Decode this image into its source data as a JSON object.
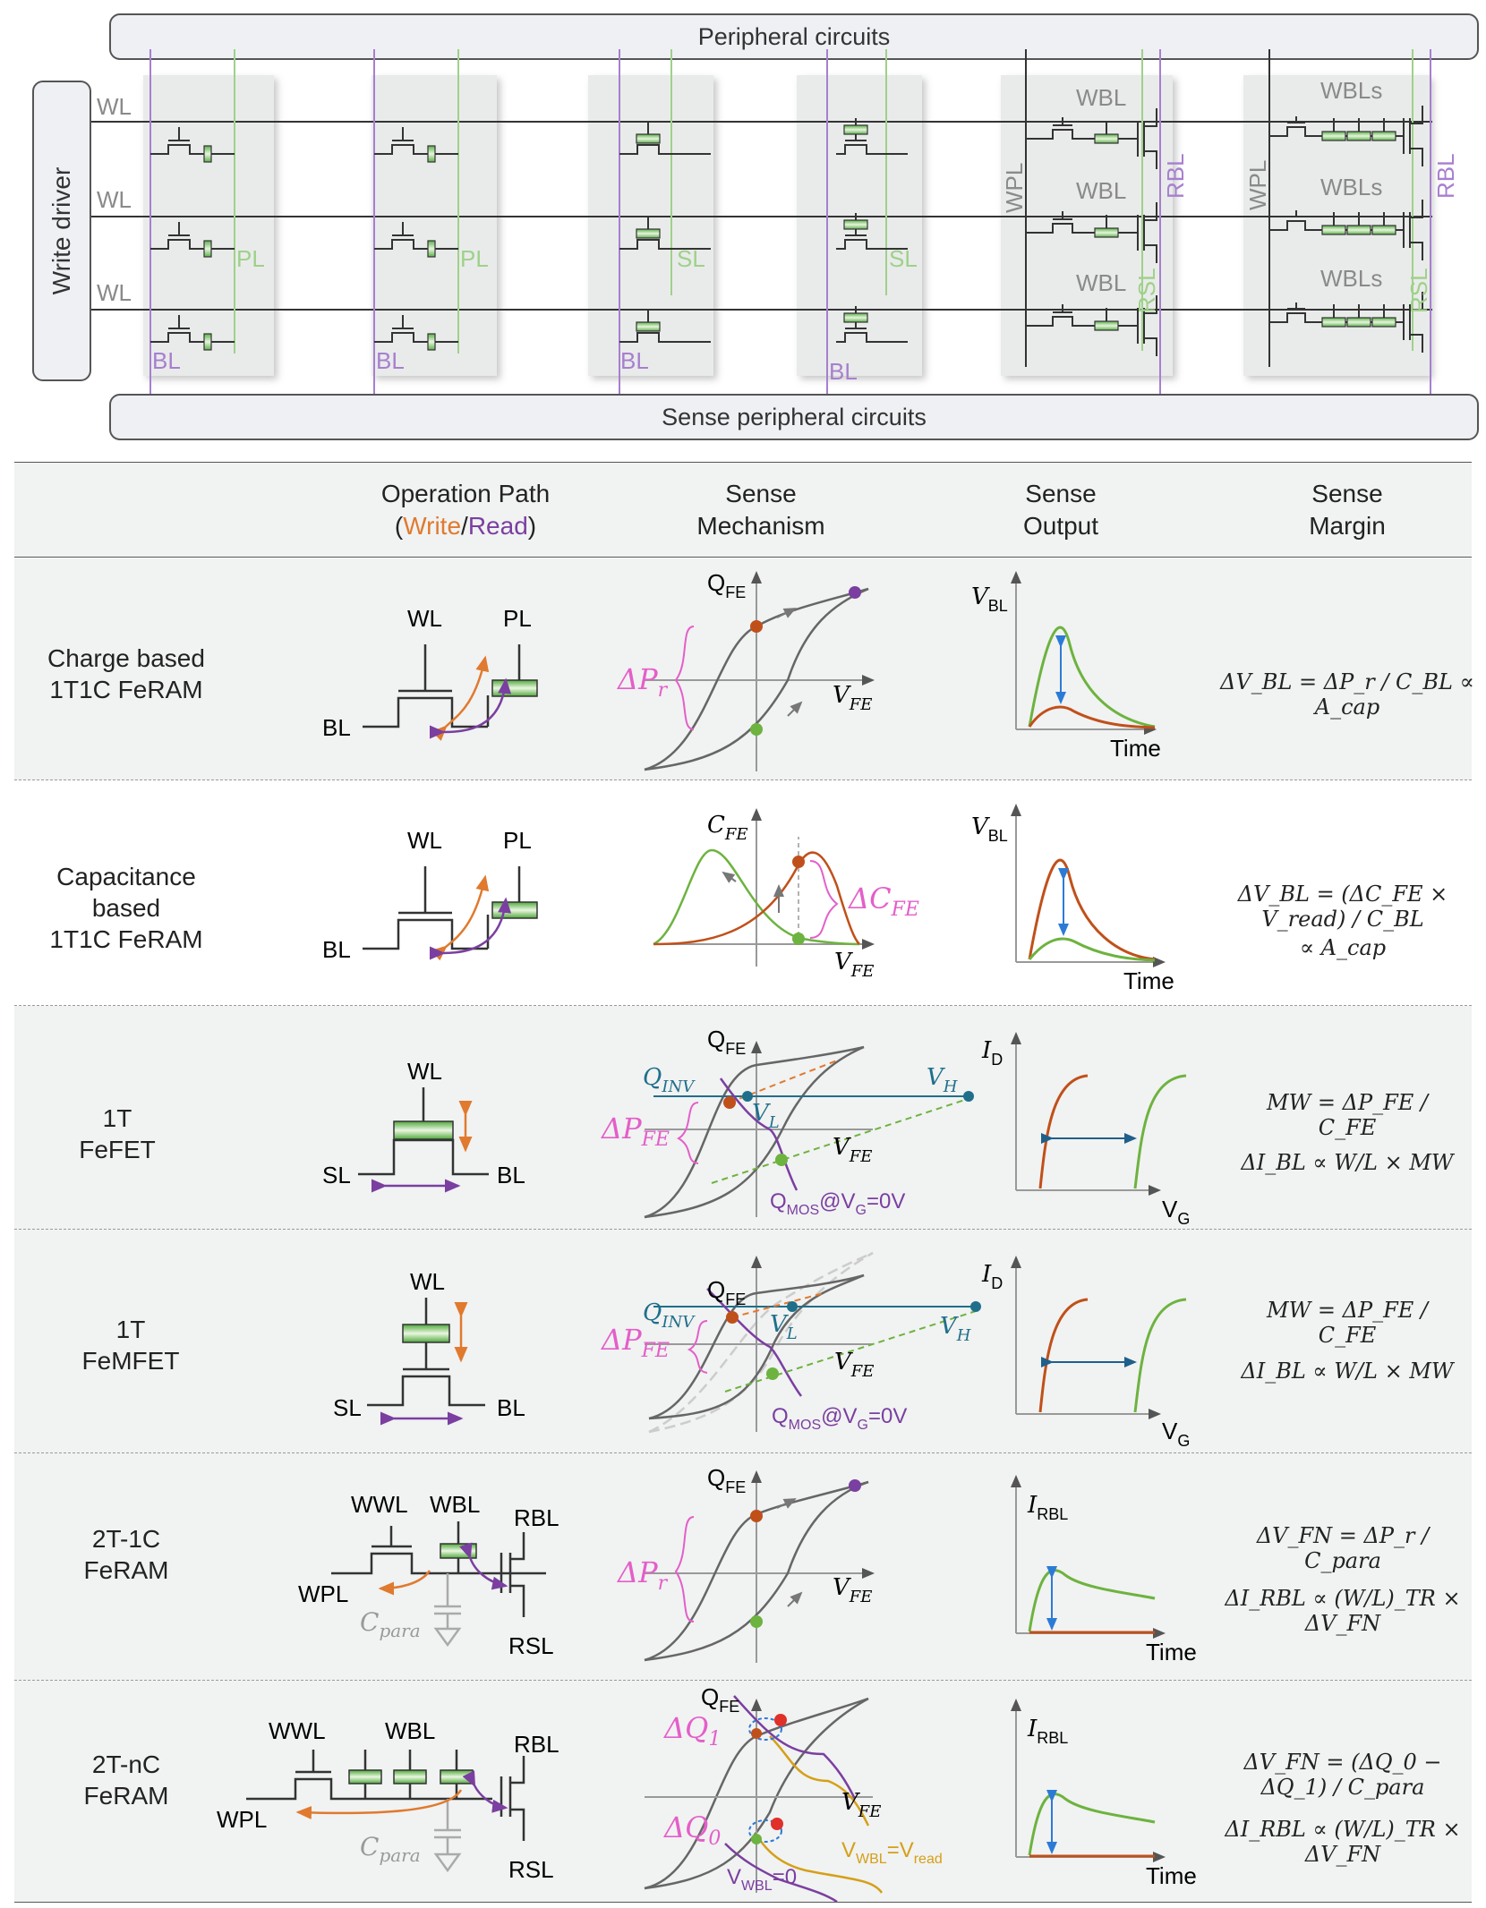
{
  "top": {
    "peripheral": "Peripheral circuits",
    "sense_peripheral": "Sense peripheral circuits",
    "write_driver": "Write driver",
    "wl": "WL",
    "bl": "BL",
    "pl": "PL",
    "sl": "SL",
    "wbl": "WBL",
    "wbls": "WBLs",
    "wpl": "WPL",
    "rbl": "RBL",
    "rsl": "RSL"
  },
  "header": {
    "op_path_1": "Operation Path",
    "op_open": "(",
    "op_write": "Write",
    "op_slash": "/",
    "op_read": "Read",
    "op_close": ")",
    "sense_mech_1": "Sense",
    "sense_mech_2": "Mechanism",
    "sense_out_1": "Sense",
    "sense_out_2": "Output",
    "sense_margin_1": "Sense",
    "sense_margin_2": "Margin"
  },
  "rows": [
    {
      "name": [
        "Charge based",
        "1T1C FeRAM"
      ]
    },
    {
      "name": [
        "Capacitance",
        "based",
        "1T1C FeRAM"
      ]
    },
    {
      "name": [
        "1T",
        "FeFET"
      ]
    },
    {
      "name": [
        "1T",
        "FeMFET"
      ]
    },
    {
      "name": [
        "2T-1C",
        "FeRAM"
      ]
    },
    {
      "name": [
        "2T-nC",
        "FeRAM"
      ]
    }
  ],
  "labels": {
    "wl": "WL",
    "pl": "PL",
    "bl": "BL",
    "sl": "SL",
    "wwl": "WWL",
    "wbl": "WBL",
    "rbl": "RBL",
    "wpl": "WPL",
    "rsl": "RSL",
    "cpara": "C",
    "cpara_sub": "para",
    "qfe": "Q",
    "fe": "FE",
    "vfe": "V",
    "cfe": "C",
    "dpr": "ΔP",
    "dpr_sub": "r",
    "dcfe": "ΔC",
    "dpfe": "ΔP",
    "qinv": "Q",
    "inv": "INV",
    "vh": "V",
    "h": "H",
    "vl": "V",
    "l": "L",
    "qmos": "Q",
    "mos_sub": "MOS",
    "at_vg": "@V",
    "g_sub": "G",
    "eq0v": "=0V",
    "vbl_axis": "V",
    "bl_sub": "BL",
    "time": "Time",
    "id": "I",
    "d_sub": "D",
    "vg": "V",
    "g": "G",
    "irbl": "I",
    "rbl_sub": "RBL",
    "dq1": "ΔQ",
    "one": "1",
    "dq0": "ΔQ",
    "zero": "0",
    "vwbl_read_a": "V",
    "vwbl_read_sub": "WBL",
    "vwbl_read_b": "=V",
    "read_sub": "read",
    "vwbl0_a": "V",
    "vwbl0_sub": "WBL",
    "vwbl0_b": "=0"
  },
  "equations": {
    "r1": "ΔV_BL = ΔP_r / C_BL ∝ A_cap",
    "r2_a": "ΔV_BL = (ΔC_FE × V_read) / C_BL",
    "r2_b": "∝ A_cap",
    "r3_a": "MW = ΔP_FE / C_FE",
    "r3_b": "ΔI_BL ∝ W/L × MW",
    "r4_a": "MW = ΔP_FE / C_FE",
    "r4_b": "ΔI_BL ∝ W/L × MW",
    "r5_a": "ΔV_FN = ΔP_r / C_para",
    "r5_b": "ΔI_RBL ∝ (W/L)_TR × ΔV_FN",
    "r6_a": "ΔV_FN = (ΔQ_0 − ΔQ_1) / C_para",
    "r6_b": "ΔI_RBL ∝ (W/L)_TR × ΔV_FN"
  },
  "colors": {
    "write": "#e07a2e",
    "read": "#7a3fa0",
    "green": "#6db33f",
    "red": "#c0501a",
    "blue": "#2b7bd6",
    "pink": "#e35fc9",
    "teal": "#1f6f8b",
    "gold": "#d4a017"
  }
}
